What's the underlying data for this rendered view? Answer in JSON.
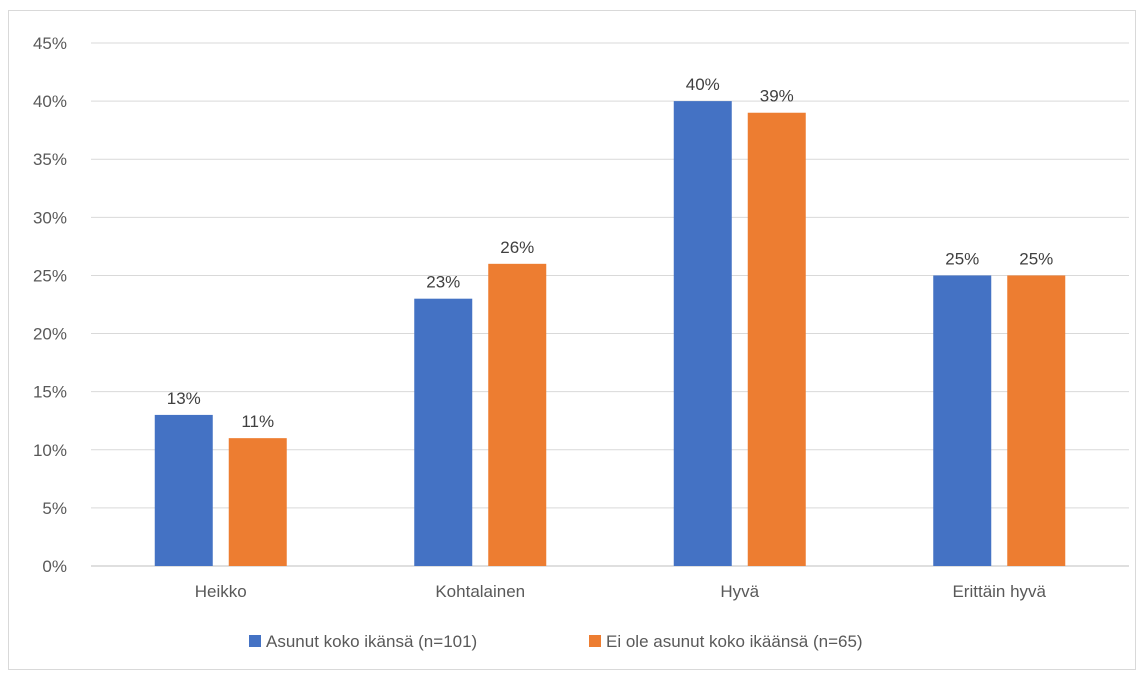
{
  "chart_data": {
    "type": "bar",
    "title": "",
    "xlabel": "",
    "ylabel": "",
    "categories": [
      "Heikko",
      "Kohtalainen",
      "Hyvä",
      "Erittäin hyvä"
    ],
    "series": [
      {
        "name": "Asunut koko ikänsä (n=101)",
        "color": "#4472c4",
        "values": [
          13,
          23,
          40,
          25
        ],
        "labels": [
          "13%",
          "23%",
          "40%",
          "25%"
        ]
      },
      {
        "name": "Ei ole asunut koko ikäänsä (n=65)",
        "color": "#ed7d31",
        "values": [
          11,
          26,
          39,
          25
        ],
        "labels": [
          "11%",
          "26%",
          "39%",
          "25%"
        ]
      }
    ],
    "ylim": [
      0,
      45
    ],
    "yticks": [
      0,
      5,
      10,
      15,
      20,
      25,
      30,
      35,
      40,
      45
    ],
    "ytick_labels": [
      "0%",
      "5%",
      "10%",
      "15%",
      "20%",
      "25%",
      "30%",
      "35%",
      "40%",
      "45%"
    ],
    "grid": true,
    "legend_position": "bottom",
    "data_labels": true
  }
}
